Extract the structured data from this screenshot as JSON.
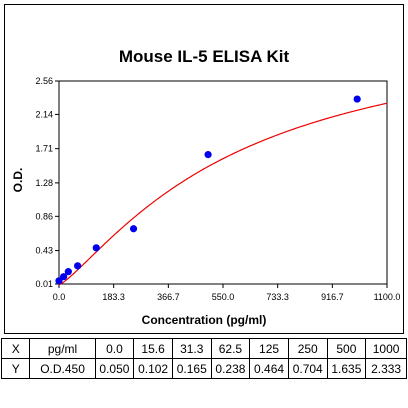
{
  "chart_data": {
    "type": "scatter",
    "title": "Mouse IL-5 ELISA Kit",
    "xlabel": "Concentration (pg/ml)",
    "ylabel": "O.D.",
    "xlim": [
      0,
      1100
    ],
    "ylim": [
      0.01,
      2.56
    ],
    "x_ticks": [
      "0.0",
      "183.3",
      "366.7",
      "550.0",
      "733.3",
      "916.7",
      "1100.0"
    ],
    "y_ticks": [
      "0.01",
      "0.43",
      "0.86",
      "1.28",
      "1.71",
      "2.14",
      "2.56"
    ],
    "grid": false,
    "point_color": "#0000ee",
    "curve_color": "#ee0000",
    "points": [
      {
        "x": 0,
        "y": 0.05
      },
      {
        "x": 15.6,
        "y": 0.102
      },
      {
        "x": 31.3,
        "y": 0.165
      },
      {
        "x": 62.5,
        "y": 0.238
      },
      {
        "x": 125,
        "y": 0.464
      },
      {
        "x": 250,
        "y": 0.704
      },
      {
        "x": 500,
        "y": 1.635
      },
      {
        "x": 1000,
        "y": 2.333
      }
    ]
  },
  "table": {
    "rows": [
      [
        "X",
        "pg/ml",
        "0.0",
        "15.6",
        "31.3",
        "62.5",
        "125",
        "250",
        "500",
        "1000"
      ],
      [
        "Y",
        "O.D.450",
        "0.050",
        "0.102",
        "0.165",
        "0.238",
        "0.464",
        "0.704",
        "1.635",
        "2.333"
      ]
    ]
  }
}
